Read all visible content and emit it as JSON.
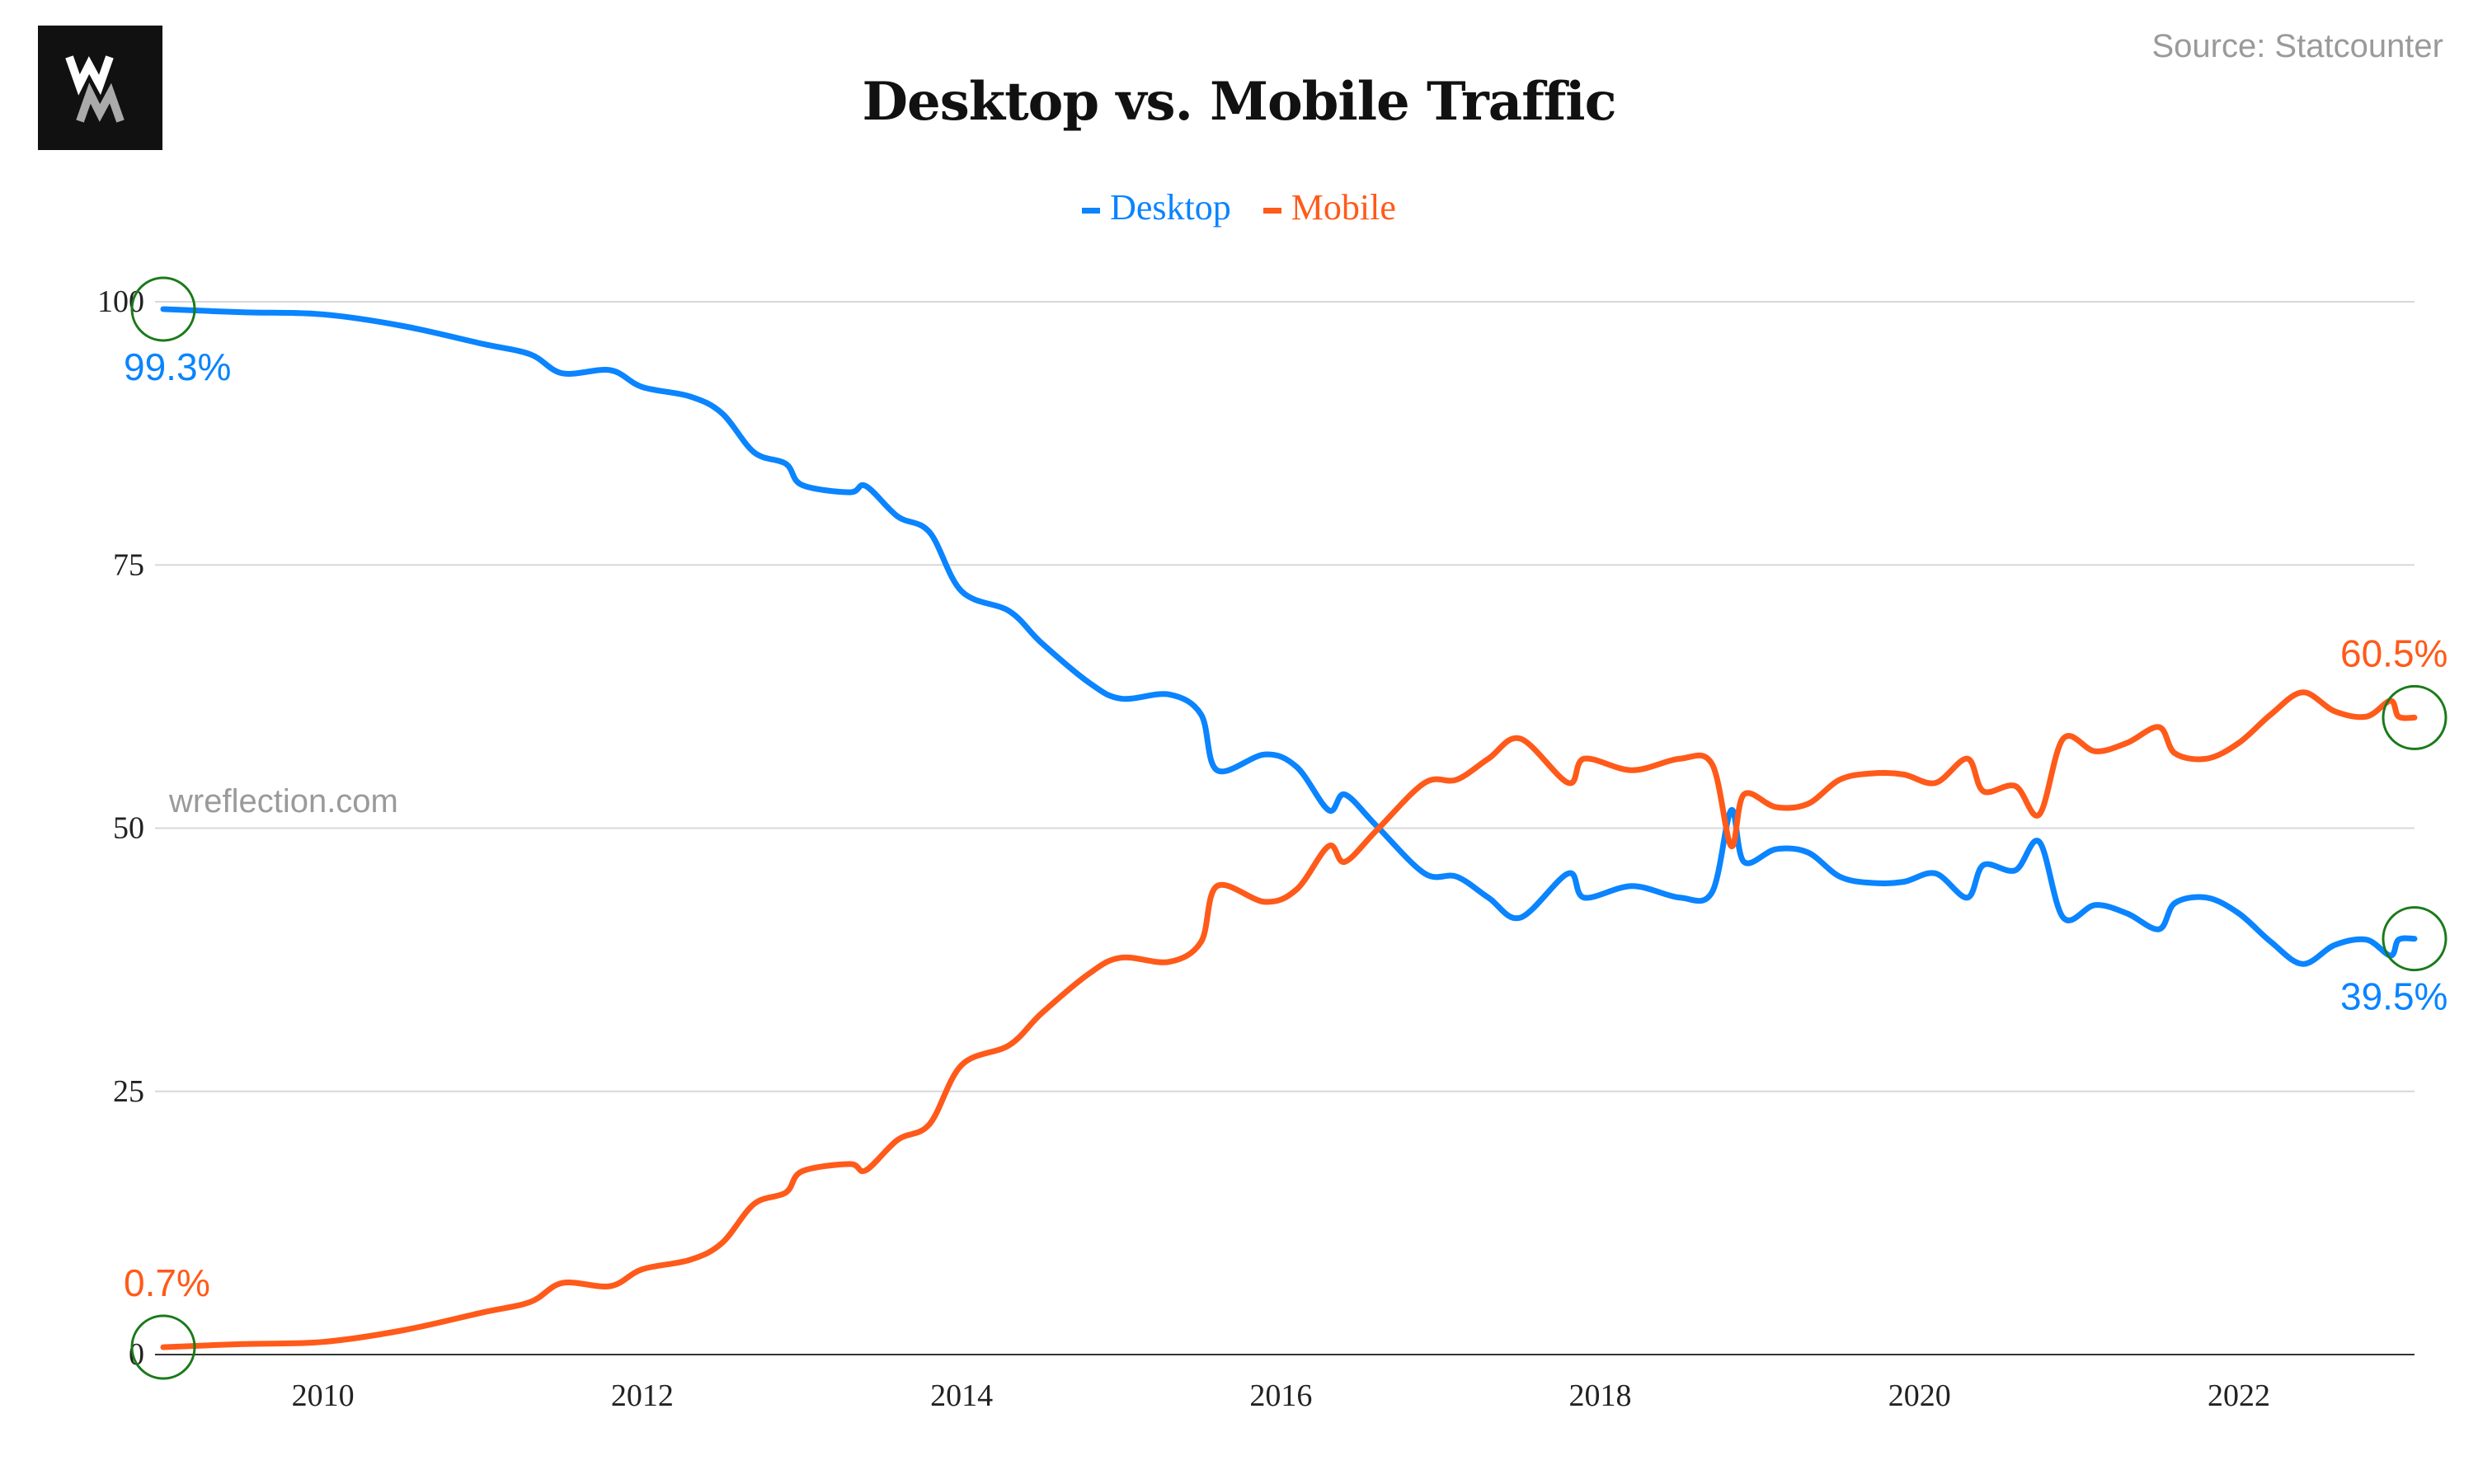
{
  "logo": {
    "text": "WM"
  },
  "source": "Source: Statcounter",
  "watermark": "wreflection.com",
  "colors": {
    "desktop": "#0a84ff",
    "mobile": "#ff5a1a",
    "marker": "#1a7a1a",
    "grid": "#d8d8d8"
  },
  "chart_data": {
    "type": "line",
    "title": "Desktop vs. Mobile Traffic",
    "xlabel": "",
    "ylabel": "",
    "xlim": [
      2009.0,
      2023.1
    ],
    "ylim": [
      0,
      100
    ],
    "yticks": [
      0,
      25,
      50,
      75,
      100
    ],
    "xticks": [
      2010,
      2012,
      2014,
      2016,
      2018,
      2020,
      2022
    ],
    "grid": true,
    "legend": {
      "placement": "top-center",
      "entries": [
        "Desktop",
        "Mobile"
      ]
    },
    "x": [
      2009.0,
      2009.5,
      2010.0,
      2010.5,
      2011.0,
      2011.3,
      2011.5,
      2011.8,
      2012.0,
      2012.3,
      2012.5,
      2012.7,
      2012.9,
      2013.0,
      2013.3,
      2013.4,
      2013.6,
      2013.8,
      2014.0,
      2014.3,
      2014.5,
      2014.8,
      2015.0,
      2015.3,
      2015.5,
      2015.6,
      2015.9,
      2016.1,
      2016.3,
      2016.4,
      2016.6,
      2016.9,
      2017.1,
      2017.3,
      2017.5,
      2017.8,
      2017.9,
      2018.2,
      2018.5,
      2018.7,
      2018.82,
      2018.9,
      2019.1,
      2019.3,
      2019.5,
      2019.7,
      2019.9,
      2020.1,
      2020.3,
      2020.4,
      2020.6,
      2020.75,
      2020.9,
      2021.1,
      2021.3,
      2021.5,
      2021.6,
      2021.8,
      2022.0,
      2022.2,
      2022.4,
      2022.6,
      2022.8,
      2022.95,
      2023.0,
      2023.1
    ],
    "series": [
      {
        "name": "Desktop",
        "values": [
          99.3,
          99.0,
          98.8,
          97.7,
          96.0,
          95.0,
          93.2,
          93.5,
          91.9,
          91.0,
          89.4,
          85.7,
          84.6,
          82.6,
          81.9,
          82.5,
          79.6,
          78.1,
          72.5,
          70.6,
          67.6,
          63.8,
          62.3,
          62.7,
          60.8,
          55.5,
          57.0,
          55.8,
          51.7,
          53.2,
          50.2,
          45.7,
          45.4,
          43.4,
          41.5,
          45.7,
          43.4,
          44.5,
          43.4,
          43.9,
          51.7,
          46.8,
          48.0,
          47.7,
          45.4,
          44.8,
          44.9,
          45.7,
          43.4,
          46.5,
          46.0,
          48.7,
          41.5,
          42.7,
          41.9,
          40.4,
          42.9,
          43.4,
          41.9,
          39.2,
          37.1,
          38.9,
          39.4,
          37.9,
          39.4,
          39.5
        ]
      },
      {
        "name": "Mobile",
        "values": [
          0.7,
          1.0,
          1.2,
          2.3,
          4.0,
          5.0,
          6.8,
          6.5,
          8.1,
          9.0,
          10.6,
          14.3,
          15.4,
          17.4,
          18.1,
          17.5,
          20.4,
          21.9,
          27.5,
          29.4,
          32.4,
          36.2,
          37.7,
          37.3,
          39.2,
          44.5,
          43.0,
          44.2,
          48.3,
          46.8,
          49.8,
          54.3,
          54.6,
          56.6,
          58.5,
          54.3,
          56.6,
          55.5,
          56.6,
          56.1,
          48.3,
          53.2,
          52.0,
          52.3,
          54.6,
          55.2,
          55.1,
          54.3,
          56.6,
          53.5,
          54.0,
          51.3,
          58.5,
          57.3,
          58.1,
          59.6,
          57.1,
          56.6,
          58.1,
          60.8,
          62.9,
          61.1,
          60.6,
          62.1,
          60.6,
          60.5
        ]
      }
    ],
    "annotations": [
      {
        "series": "Desktop",
        "x": 2009.0,
        "y": 99.3,
        "text": "99.3%"
      },
      {
        "series": "Mobile",
        "x": 2009.0,
        "y": 0.7,
        "text": "0.7%"
      },
      {
        "series": "Mobile",
        "x": 2023.1,
        "y": 60.5,
        "text": "60.5%"
      },
      {
        "series": "Desktop",
        "x": 2023.1,
        "y": 39.5,
        "text": "39.5%"
      }
    ]
  }
}
